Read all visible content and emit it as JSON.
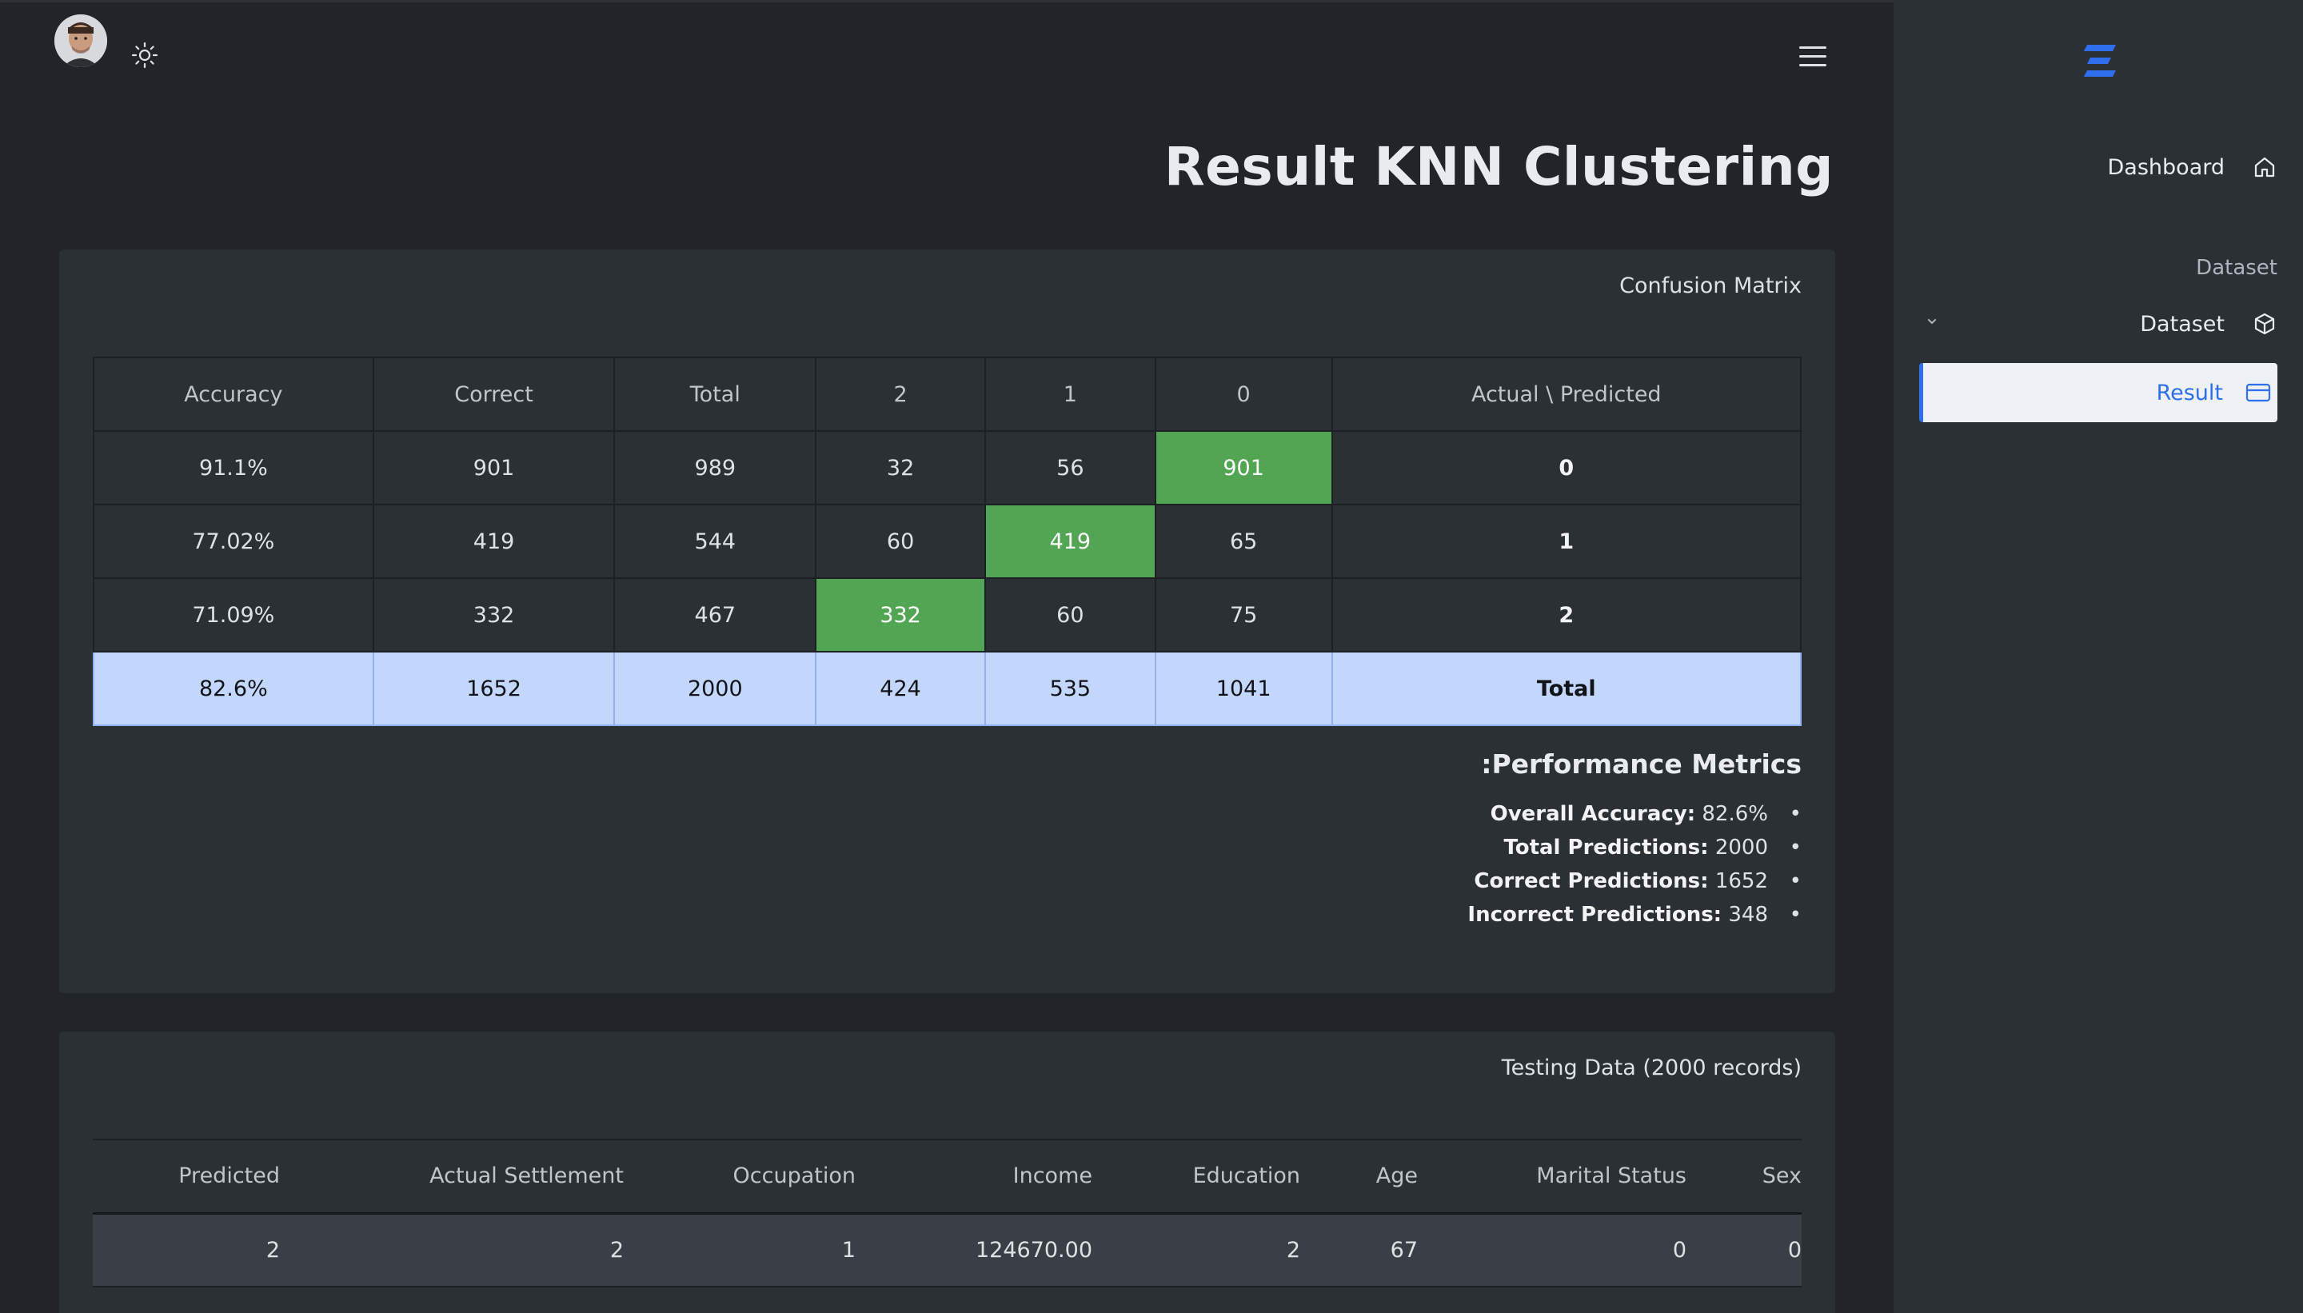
{
  "header": {
    "avatar_icon": "user-avatar",
    "theme_icon": "sun-icon",
    "menu_icon": "hamburger-menu-icon"
  },
  "page": {
    "title": "Result KNN Clustering"
  },
  "confusion_card": {
    "title": "Confusion Matrix",
    "columns": [
      "Accuracy",
      "Correct",
      "Total",
      "2",
      "1",
      "0",
      "Actual \\ Predicted"
    ],
    "rows": [
      {
        "accuracy": "91.1%",
        "correct": "901",
        "total": "989",
        "p2": "32",
        "p1": "56",
        "p0": "901",
        "actual": "0"
      },
      {
        "accuracy": "77.02%",
        "correct": "419",
        "total": "544",
        "p2": "60",
        "p1": "419",
        "p0": "65",
        "actual": "1"
      },
      {
        "accuracy": "71.09%",
        "correct": "332",
        "total": "467",
        "p2": "332",
        "p1": "60",
        "p0": "75",
        "actual": "2"
      }
    ],
    "total_row": {
      "accuracy": "82.6%",
      "correct": "1652",
      "total": "2000",
      "p2": "424",
      "p1": "535",
      "p0": "1041",
      "label": "Total"
    },
    "highlight_color": "#52a552",
    "total_row_color": "#c3d6fb"
  },
  "metrics": {
    "title": ":Performance Metrics",
    "items": [
      {
        "label": "Overall Accuracy:",
        "value": "82.6%"
      },
      {
        "label": "Total Predictions:",
        "value": "2000"
      },
      {
        "label": "Correct Predictions:",
        "value": "1652"
      },
      {
        "label": "Incorrect Predictions:",
        "value": "348"
      }
    ]
  },
  "testing_card": {
    "title": "Testing Data (2000 records)",
    "columns": [
      "Predicted",
      "Actual Settlement",
      "Occupation",
      "Income",
      "Education",
      "Age",
      "Marital Status",
      "Sex"
    ],
    "rows": [
      [
        "2",
        "2",
        "1",
        "124670.00",
        "2",
        "67",
        "0",
        "0"
      ]
    ]
  },
  "sidebar": {
    "logo_icon": "brand-logo-icon",
    "dashboard_label": "Dashboard",
    "section_label": "Dataset",
    "dataset_label": "Dataset",
    "result_label": "Result",
    "accent_color": "#2f6fed"
  }
}
